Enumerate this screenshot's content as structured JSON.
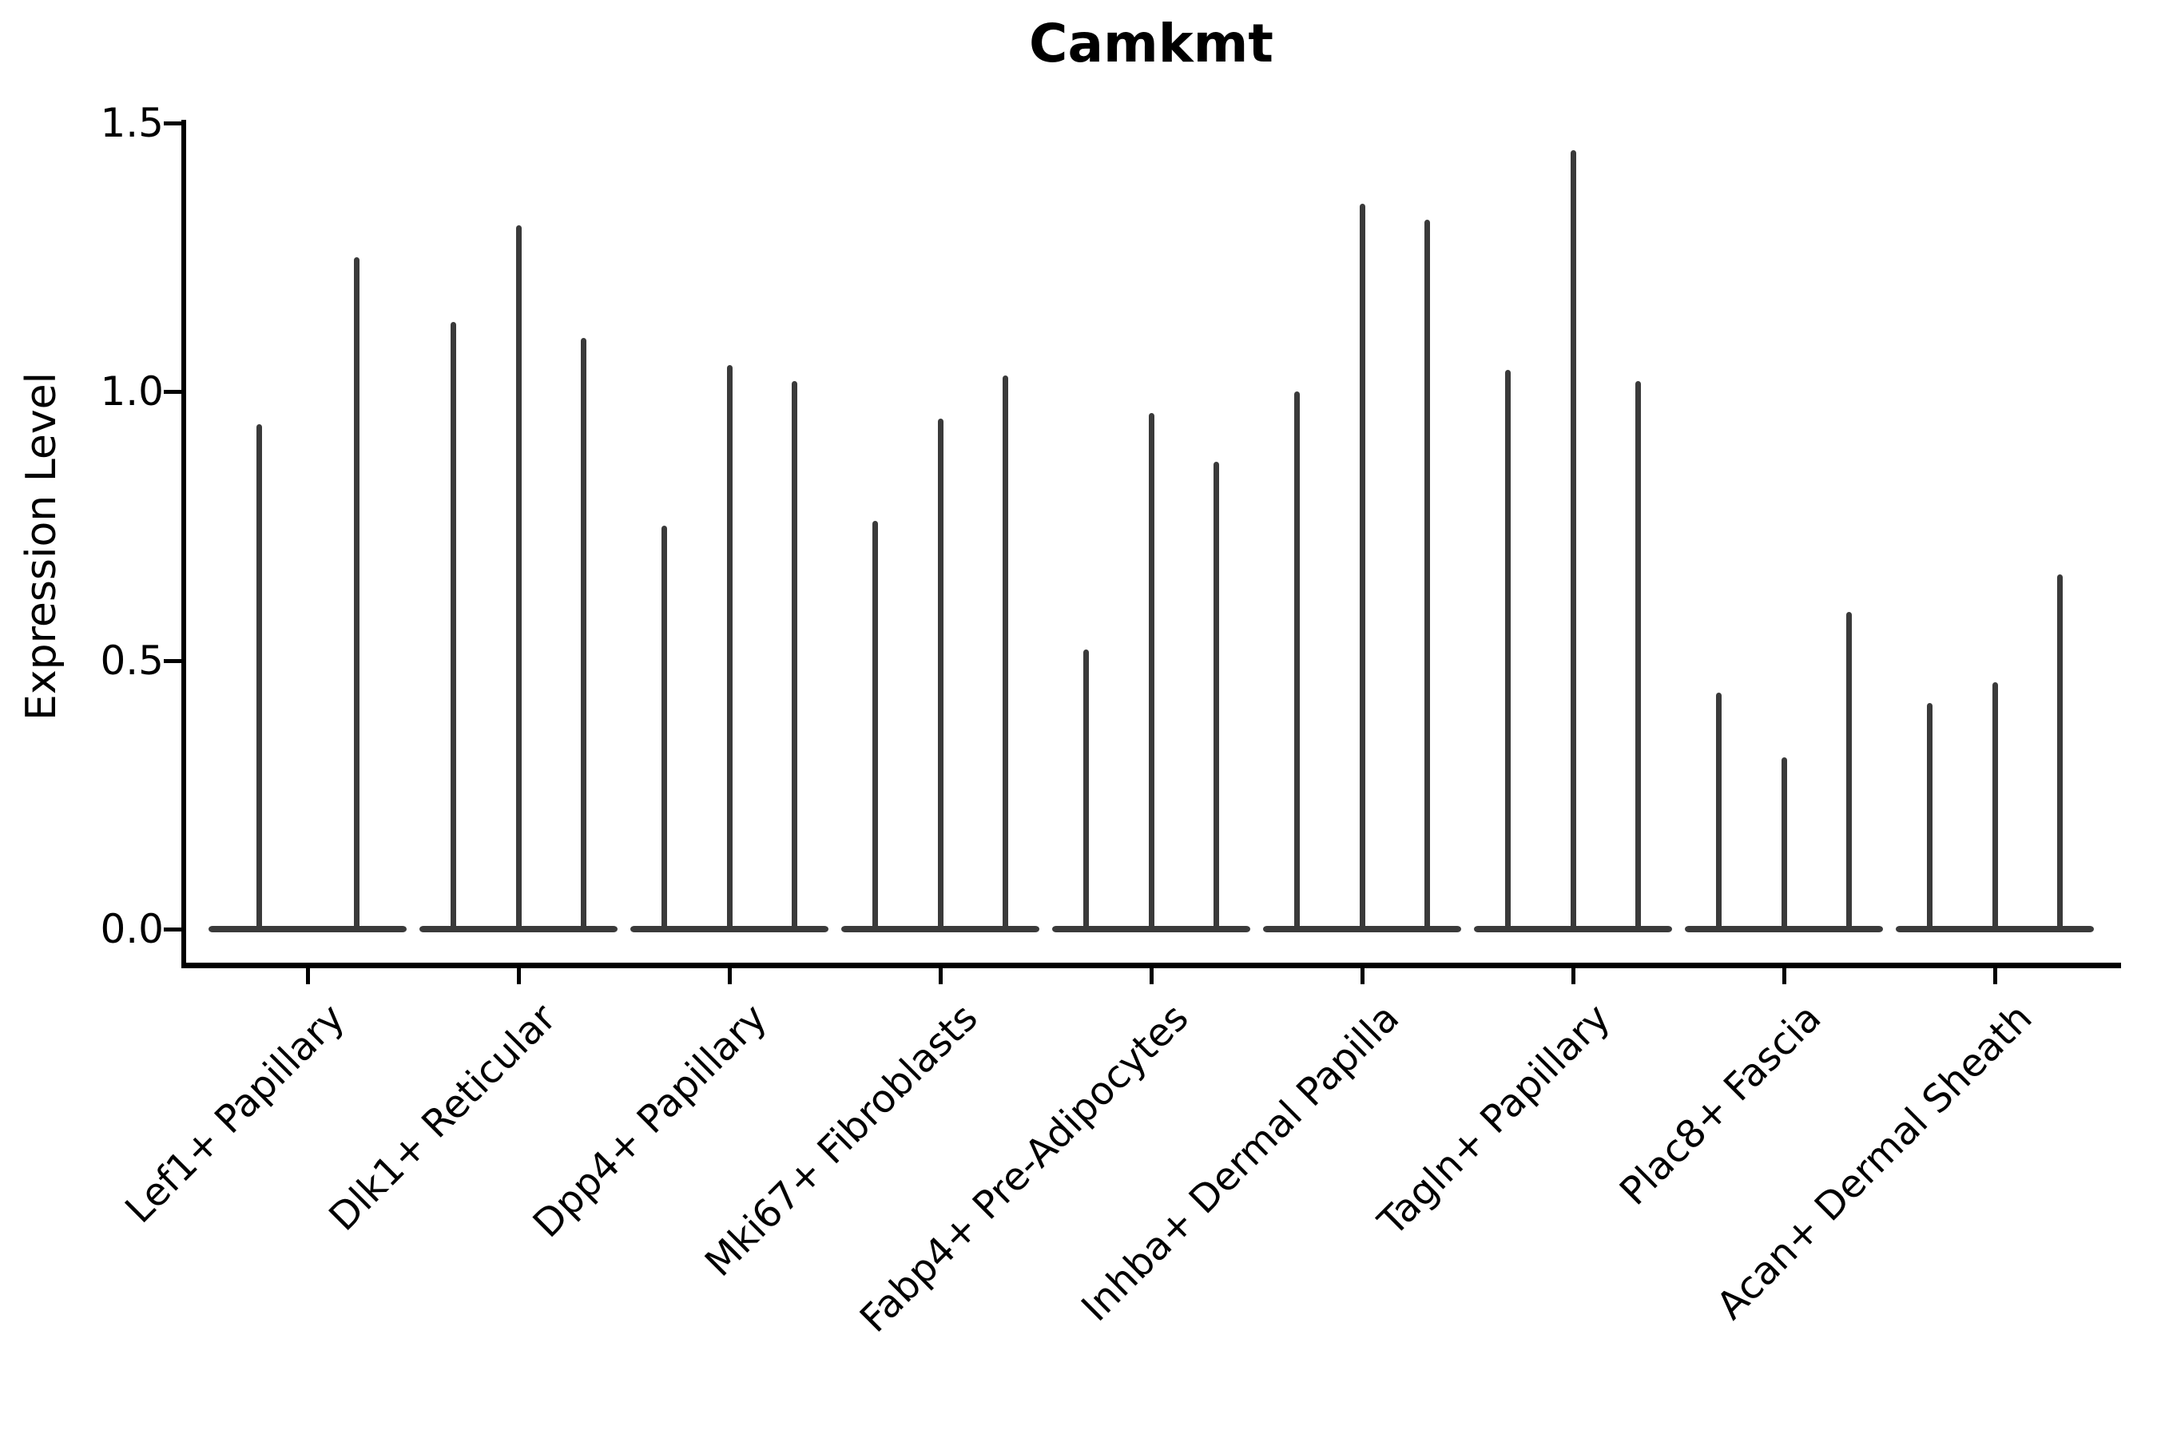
{
  "chart_data": {
    "type": "violin",
    "title": "Camkmt",
    "ylabel": "Expression Level",
    "xlabel": "",
    "ylim": [
      0.0,
      1.5
    ],
    "ytick_values": [
      0.0,
      0.5,
      1.0,
      1.5
    ],
    "ytick_labels": [
      "0.0",
      "0.5",
      "1.0",
      "1.5"
    ],
    "grid": false,
    "legend_position": "none",
    "violin_color": "#3a3a3a",
    "axis_color": "#000000",
    "categories": [
      "Lef1+ Papillary",
      "Dlk1+ Reticular",
      "Dpp4+ Papillary",
      "Mki67+ Fibroblasts",
      "Fabp4+ Pre-Adipocytes",
      "Inhba+ Dermal Papilla",
      "Tagln+ Papillary",
      "Plac8+ Fascia",
      "Acan+ Dermal Sheath"
    ],
    "series": [
      {
        "category": "Lef1+ Papillary",
        "violin_max_expression": [
          0.94,
          1.25
        ]
      },
      {
        "category": "Dlk1+ Reticular",
        "violin_max_expression": [
          1.13,
          1.31,
          1.1
        ]
      },
      {
        "category": "Dpp4+ Papillary",
        "violin_max_expression": [
          0.75,
          1.05,
          1.02
        ]
      },
      {
        "category": "Mki67+ Fibroblasts",
        "violin_max_expression": [
          0.76,
          0.95,
          1.03
        ]
      },
      {
        "category": "Fabp4+ Pre-Adipocytes",
        "violin_max_expression": [
          0.52,
          0.96,
          0.87
        ]
      },
      {
        "category": "Inhba+ Dermal Papilla",
        "violin_max_expression": [
          1.0,
          1.35,
          1.32
        ]
      },
      {
        "category": "Tagln+ Papillary",
        "violin_max_expression": [
          1.04,
          1.45,
          1.02
        ]
      },
      {
        "category": "Plac8+ Fascia",
        "violin_max_expression": [
          0.44,
          0.32,
          0.59
        ]
      },
      {
        "category": "Acan+ Dermal Sheath",
        "violin_max_expression": [
          0.42,
          0.46,
          0.66
        ]
      }
    ]
  }
}
